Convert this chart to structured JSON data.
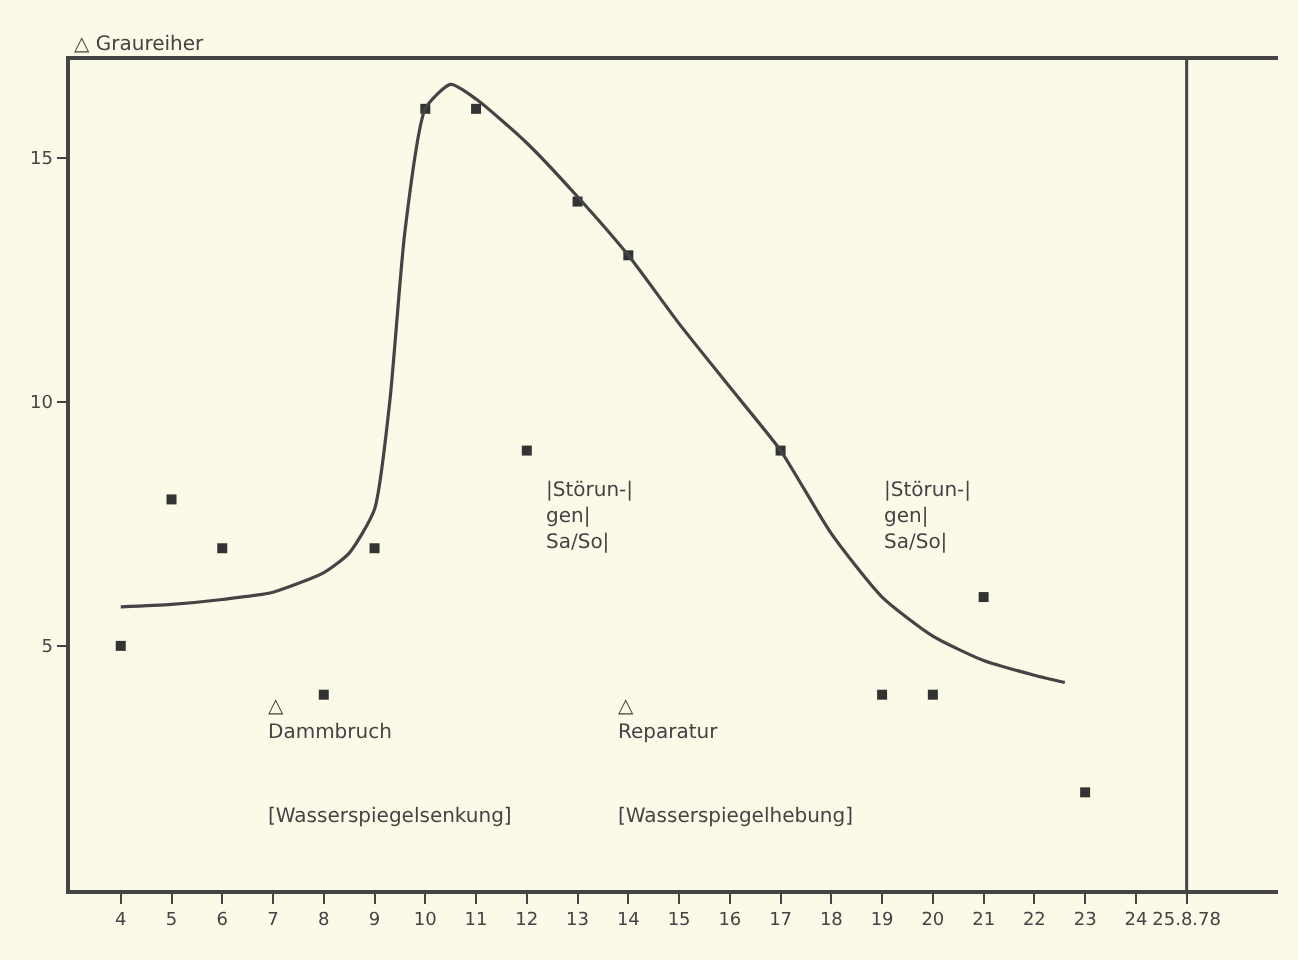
{
  "chart_data": {
    "type": "scatter",
    "ylabel": "△ Graureiher",
    "xlim": [
      3,
      26.8
    ],
    "ylim": [
      0,
      17
    ],
    "xticks": [
      4,
      5,
      6,
      7,
      8,
      9,
      10,
      11,
      12,
      13,
      14,
      15,
      16,
      17,
      18,
      19,
      20,
      21,
      22,
      23,
      24,
      {
        "value": 25,
        "label": "25.8.78"
      }
    ],
    "yticks": [
      5,
      10,
      15
    ],
    "grid": false,
    "series": [
      {
        "color": "#333333",
        "marker": "square",
        "x": [
          4,
          5,
          6,
          8,
          9,
          10,
          11,
          12,
          13,
          14,
          17,
          19,
          20,
          21,
          23
        ],
        "values": [
          5,
          8,
          7,
          4,
          7,
          16,
          16,
          9,
          14.1,
          13,
          9,
          4,
          4,
          6,
          2
        ]
      },
      {
        "type": "line",
        "color": "#444444",
        "marker": "none",
        "line_style": "solid",
        "x": [
          4,
          5,
          6,
          7,
          8,
          8.5,
          9,
          9.3,
          9.6,
          10,
          10.5,
          11,
          12,
          13,
          14,
          15,
          16,
          17,
          18,
          19,
          20,
          21,
          22,
          22.6
        ],
        "values": [
          5.8,
          5.85,
          5.95,
          6.1,
          6.5,
          6.9,
          7.8,
          10,
          13.5,
          16,
          16.5,
          16.2,
          15.3,
          14.2,
          13,
          11.6,
          10.3,
          9,
          7.3,
          6,
          5.2,
          4.7,
          4.4,
          4.25
        ]
      }
    ],
    "ref_lines": [
      {
        "axis": "x",
        "value": 25,
        "color": "#444444"
      }
    ],
    "annotations": [
      "△\nDammbruch",
      "△\nReparatur",
      "[Wasserspiegelsenkung]",
      "[Wasserspiegelhebung]",
      "|Störun-|\ngen|\nSa/So|",
      "|Störun-|\ngen|\nSa/So|"
    ]
  }
}
